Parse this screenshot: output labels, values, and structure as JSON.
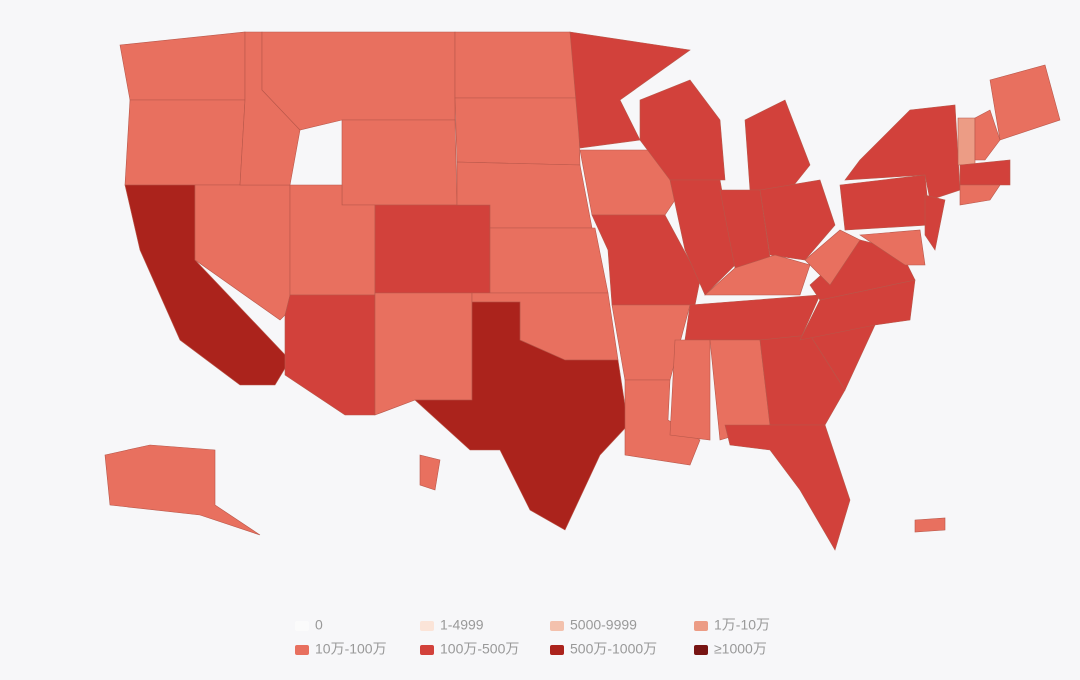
{
  "legend": [
    {
      "label": "0",
      "color": "#fbfbfb"
    },
    {
      "label": "1-4999",
      "color": "#fbe4d8"
    },
    {
      "label": "5000-9999",
      "color": "#f3c1ad"
    },
    {
      "label": "1万-10万",
      "color": "#ec9c85"
    },
    {
      "label": "10万-100万",
      "color": "#e8705f"
    },
    {
      "label": "100万-500万",
      "color": "#d2413b"
    },
    {
      "label": "500万-1000万",
      "color": "#ab231c"
    },
    {
      "label": "≥1000万",
      "color": "#781413"
    }
  ],
  "regions": [
    4,
    4,
    6,
    4,
    4,
    4,
    4,
    4,
    5,
    5,
    4,
    4,
    4,
    4,
    4,
    4,
    6,
    5,
    4,
    5,
    4,
    4,
    5,
    5,
    5,
    5,
    5,
    4,
    5,
    4,
    4,
    5,
    5,
    5,
    5,
    5,
    4,
    5,
    5,
    5,
    4,
    3,
    4,
    4,
    5,
    4,
    4,
    4,
    4
  ]
}
